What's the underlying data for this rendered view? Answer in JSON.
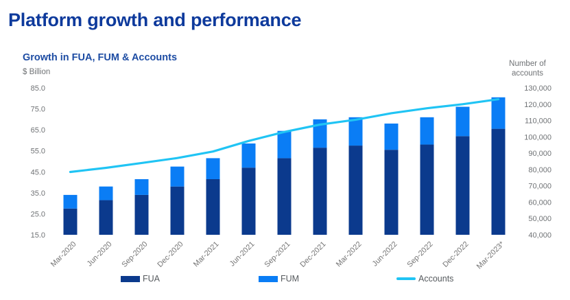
{
  "page": {
    "title": "Platform growth and performance"
  },
  "chart": {
    "title": "Growth in FUA, FUM & Accounts",
    "left_axis_unit": "$ Billion",
    "right_axis_unit": "Number of\naccounts",
    "legend": {
      "fua": "FUA",
      "fum": "FUM",
      "accounts": "Accounts"
    }
  },
  "colors": {
    "page_title": "#0e3a9c",
    "chart_title": "#1d4ca3",
    "fua_bar": "#0b3a8d",
    "fum_bar": "#0a7df5",
    "accounts_line": "#20c4f4",
    "axis_text": "#6f7275",
    "x_label_text": "#757575",
    "legend_text": "#565a5e"
  },
  "chart_data": {
    "type": "bar",
    "subtype": "stacked-bar-with-line",
    "title": "Growth in FUA, FUM & Accounts",
    "categories": [
      "Mar-2020",
      "Jun-2020",
      "Sep-2020",
      "Dec-2020",
      "Mar-2021",
      "Jun-2021",
      "Sep-2021",
      "Dec-2021",
      "Mar-2022",
      "Jun-2022",
      "Sep-2022",
      "Dec-2022",
      "Mar-2023*"
    ],
    "series": [
      {
        "name": "FUA",
        "type": "bar",
        "stack": "billions",
        "axis": "left",
        "color": "#0b3a8d",
        "values": [
          27.5,
          31.5,
          34.0,
          38.0,
          41.5,
          47.0,
          51.5,
          56.5,
          57.5,
          55.5,
          58.0,
          62.0,
          65.5
        ]
      },
      {
        "name": "FUM",
        "type": "bar",
        "stack": "billions",
        "axis": "left",
        "color": "#0a7df5",
        "values": [
          6.5,
          6.5,
          7.5,
          9.5,
          10.0,
          11.5,
          13.0,
          13.5,
          13.5,
          12.5,
          13.0,
          14.0,
          15.0
        ]
      },
      {
        "name": "Accounts",
        "type": "line",
        "axis": "right",
        "color": "#20c4f4",
        "values": [
          78500,
          81000,
          84000,
          87000,
          91000,
          97500,
          103000,
          107500,
          110500,
          114500,
          117500,
          120000,
          123000
        ]
      }
    ],
    "left_axis": {
      "label": "$ Billion",
      "min": 15,
      "max": 85,
      "tick_step": 10,
      "ticks": [
        {
          "v": 85,
          "label": "85.0"
        },
        {
          "v": 75,
          "label": "75.0"
        },
        {
          "v": 65,
          "label": "65.0"
        },
        {
          "v": 55,
          "label": "55.0"
        },
        {
          "v": 45,
          "label": "45.0"
        },
        {
          "v": 35,
          "label": "35.0"
        },
        {
          "v": 25,
          "label": "25.0"
        },
        {
          "v": 15,
          "label": "15.0"
        }
      ]
    },
    "right_axis": {
      "label": "Number of accounts",
      "min": 40000,
      "max": 130000,
      "tick_step": 10000,
      "ticks": [
        {
          "v": 130000,
          "label": "130,000"
        },
        {
          "v": 120000,
          "label": "120,000"
        },
        {
          "v": 110000,
          "label": "110,000"
        },
        {
          "v": 100000,
          "label": "100,000"
        },
        {
          "v": 90000,
          "label": "90,000"
        },
        {
          "v": 80000,
          "label": "80,000"
        },
        {
          "v": 70000,
          "label": "70,000"
        },
        {
          "v": 60000,
          "label": "60,000"
        },
        {
          "v": 50000,
          "label": "50,000"
        },
        {
          "v": 40000,
          "label": "40,000"
        }
      ]
    },
    "grid": false,
    "legend_position": "bottom",
    "x_label_rotation": -45
  }
}
